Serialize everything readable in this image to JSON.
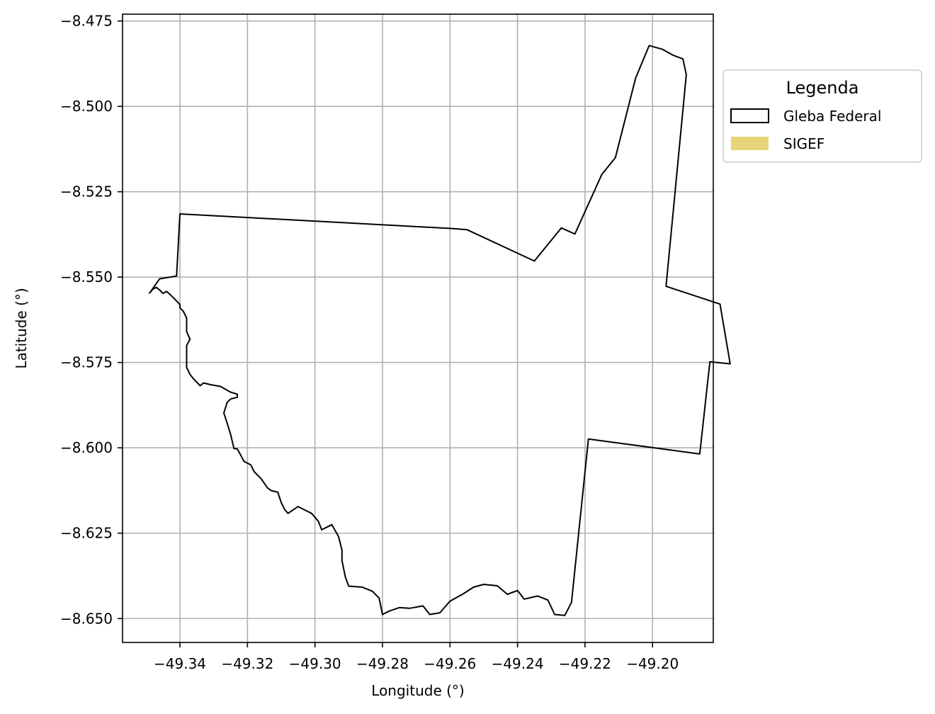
{
  "chart_data": {
    "type": "map",
    "xlabel": "Longitude (°)",
    "ylabel": "Latitude (°)",
    "xlim": [
      -49.357,
      -49.182
    ],
    "ylim": [
      -8.657,
      -8.473
    ],
    "xticks": [
      -49.34,
      -49.32,
      -49.3,
      -49.28,
      -49.26,
      -49.24,
      -49.22,
      -49.2
    ],
    "xtick_labels": [
      "−49.34",
      "−49.32",
      "−49.30",
      "−49.28",
      "−49.26",
      "−49.24",
      "−49.22",
      "−49.20"
    ],
    "yticks": [
      -8.475,
      -8.5,
      -8.525,
      -8.55,
      -8.575,
      -8.6,
      -8.625,
      -8.65
    ],
    "ytick_labels": [
      "−8.475",
      "−8.500",
      "−8.525",
      "−8.550",
      "−8.575",
      "−8.600",
      "−8.625",
      "−8.650"
    ],
    "grid": true,
    "legend": {
      "title": "Legenda",
      "placement": "outside-right",
      "entries": [
        {
          "label": "Gleba Federal",
          "style": "outline",
          "color": "#000000"
        },
        {
          "label": "SIGEF",
          "style": "fill",
          "color": "#e8d57a"
        }
      ]
    },
    "series": [
      {
        "name": "Gleba Federal",
        "type": "polygon",
        "stroke": "#000000",
        "fill": "none",
        "points": [
          [
            -49.349,
            -8.5547
          ],
          [
            -49.346,
            -8.5505
          ],
          [
            -49.341,
            -8.5497
          ],
          [
            -49.34,
            -8.5315
          ],
          [
            -49.259,
            -8.5358
          ],
          [
            -49.255,
            -8.5361
          ],
          [
            -49.235,
            -8.5453
          ],
          [
            -49.227,
            -8.5356
          ],
          [
            -49.223,
            -8.5374
          ],
          [
            -49.215,
            -8.5199
          ],
          [
            -49.211,
            -8.515
          ],
          [
            -49.205,
            -8.4917
          ],
          [
            -49.201,
            -8.4822
          ],
          [
            -49.197,
            -8.4833
          ],
          [
            -49.194,
            -8.485
          ],
          [
            -49.191,
            -8.4861
          ],
          [
            -49.19,
            -8.4907
          ],
          [
            -49.196,
            -8.5527
          ],
          [
            -49.18,
            -8.5579
          ],
          [
            -49.177,
            -8.5754
          ],
          [
            -49.183,
            -8.5748
          ],
          [
            -49.186,
            -8.6018
          ],
          [
            -49.219,
            -8.5974
          ],
          [
            -49.224,
            -8.6453
          ],
          [
            -49.226,
            -8.6491
          ],
          [
            -49.229,
            -8.6488
          ],
          [
            -49.231,
            -8.6446
          ],
          [
            -49.234,
            -8.6434
          ],
          [
            -49.238,
            -8.6443
          ],
          [
            -49.24,
            -8.6418
          ],
          [
            -49.243,
            -8.6429
          ],
          [
            -49.246,
            -8.6404
          ],
          [
            -49.25,
            -8.64
          ],
          [
            -49.253,
            -8.6408
          ],
          [
            -49.256,
            -8.6427
          ],
          [
            -49.26,
            -8.6449
          ],
          [
            -49.263,
            -8.6483
          ],
          [
            -49.266,
            -8.6488
          ],
          [
            -49.268,
            -8.6463
          ],
          [
            -49.272,
            -8.647
          ],
          [
            -49.275,
            -8.6468
          ],
          [
            -49.278,
            -8.6478
          ],
          [
            -49.28,
            -8.6488
          ],
          [
            -49.281,
            -8.644
          ],
          [
            -49.283,
            -8.642
          ],
          [
            -49.286,
            -8.6408
          ],
          [
            -49.29,
            -8.6405
          ],
          [
            -49.291,
            -8.6378
          ],
          [
            -49.292,
            -8.633
          ],
          [
            -49.292,
            -8.63
          ],
          [
            -49.293,
            -8.626
          ],
          [
            -49.295,
            -8.6225
          ],
          [
            -49.298,
            -8.624
          ],
          [
            -49.299,
            -8.6215
          ],
          [
            -49.301,
            -8.6192
          ],
          [
            -49.303,
            -8.6182
          ],
          [
            -49.305,
            -8.6172
          ],
          [
            -49.308,
            -8.6192
          ],
          [
            -49.309,
            -8.618
          ],
          [
            -49.31,
            -8.616
          ],
          [
            -49.311,
            -8.613
          ],
          [
            -49.313,
            -8.6125
          ],
          [
            -49.314,
            -8.6118
          ],
          [
            -49.316,
            -8.609
          ],
          [
            -49.318,
            -8.607
          ],
          [
            -49.319,
            -8.605
          ],
          [
            -49.321,
            -8.604
          ],
          [
            -49.323,
            -8.6003
          ],
          [
            -49.324,
            -8.6002
          ],
          [
            -49.325,
            -8.596
          ],
          [
            -49.326,
            -8.5928
          ],
          [
            -49.327,
            -8.5898
          ],
          [
            -49.326,
            -8.5867
          ],
          [
            -49.325,
            -8.5857
          ],
          [
            -49.323,
            -8.5852
          ],
          [
            -49.323,
            -8.5843
          ],
          [
            -49.325,
            -8.5837
          ],
          [
            -49.328,
            -8.582
          ],
          [
            -49.331,
            -8.5815
          ],
          [
            -49.333,
            -8.581
          ],
          [
            -49.334,
            -8.5818
          ],
          [
            -49.335,
            -8.5808
          ],
          [
            -49.336,
            -8.5798
          ],
          [
            -49.337,
            -8.5785
          ],
          [
            -49.338,
            -8.5765
          ],
          [
            -49.338,
            -8.5752
          ],
          [
            -49.338,
            -8.5731
          ],
          [
            -49.338,
            -8.572
          ],
          [
            -49.338,
            -8.57
          ],
          [
            -49.337,
            -8.5682
          ],
          [
            -49.338,
            -8.566
          ],
          [
            -49.338,
            -8.564
          ],
          [
            -49.338,
            -8.562
          ],
          [
            -49.339,
            -8.56
          ],
          [
            -49.34,
            -8.559
          ],
          [
            -49.34,
            -8.558
          ],
          [
            -49.341,
            -8.557
          ],
          [
            -49.342,
            -8.556
          ],
          [
            -49.343,
            -8.555
          ],
          [
            -49.344,
            -8.5542
          ],
          [
            -49.345,
            -8.5548
          ],
          [
            -49.346,
            -8.5538
          ],
          [
            -49.347,
            -8.553
          ],
          [
            -49.348,
            -8.5535
          ],
          [
            -49.349,
            -8.5547
          ]
        ]
      }
    ]
  }
}
